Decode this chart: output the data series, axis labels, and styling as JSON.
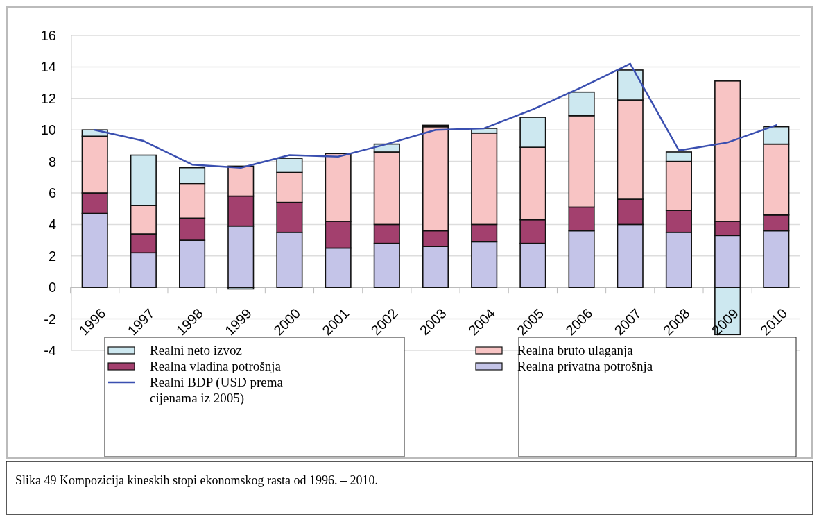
{
  "chart_data": {
    "type": "bar",
    "stacked": true,
    "categories": [
      "1996",
      "1997",
      "1998",
      "1999",
      "2000",
      "2001",
      "2002",
      "2003",
      "2004",
      "2005",
      "2006",
      "2007",
      "2008",
      "2009",
      "2010"
    ],
    "series": [
      {
        "name": "Realna privatna potrošnja",
        "color": "#c4c4e8",
        "values": [
          4.7,
          2.2,
          3.0,
          3.9,
          3.5,
          2.5,
          2.8,
          2.6,
          2.9,
          2.8,
          3.6,
          4.0,
          3.5,
          3.3,
          3.6
        ]
      },
      {
        "name": "Realna vladina potrošnja",
        "color": "#a3406e",
        "values": [
          1.3,
          1.2,
          1.4,
          1.9,
          1.9,
          1.7,
          1.2,
          1.0,
          1.1,
          1.5,
          1.5,
          1.6,
          1.4,
          0.9,
          1.0
        ]
      },
      {
        "name": "Realna bruto ulaganja",
        "color": "#f8c4c4",
        "values": [
          3.6,
          1.8,
          2.2,
          1.9,
          1.9,
          4.3,
          4.6,
          6.6,
          5.8,
          4.6,
          5.8,
          6.3,
          3.1,
          8.9,
          4.5
        ]
      },
      {
        "name": "Realni neto izvoz",
        "color": "#cde8f0",
        "values": [
          0.4,
          3.2,
          1.0,
          -0.1,
          0.9,
          0.0,
          0.5,
          0.1,
          0.3,
          1.9,
          1.5,
          1.9,
          0.6,
          -3.0,
          1.1
        ]
      },
      {
        "name": "Realni BDP (USD prema cijenama iz 2005)",
        "type": "line",
        "color": "#3a4fb0",
        "values": [
          10.0,
          9.3,
          7.8,
          7.6,
          8.4,
          8.3,
          9.1,
          10.0,
          10.1,
          11.3,
          12.7,
          14.2,
          8.7,
          9.2,
          10.3
        ]
      }
    ],
    "ylim": [
      -4,
      16
    ],
    "yticks": [
      -4,
      -2,
      0,
      2,
      4,
      6,
      8,
      10,
      12,
      14,
      16
    ],
    "grid": "y",
    "legend": "bottom",
    "marker": "none",
    "line_style": "solid",
    "annotations": [
      "Slika 49  Kompozicija kineskih stopi ekonomskog rasta od 1996. – 2010."
    ]
  }
}
